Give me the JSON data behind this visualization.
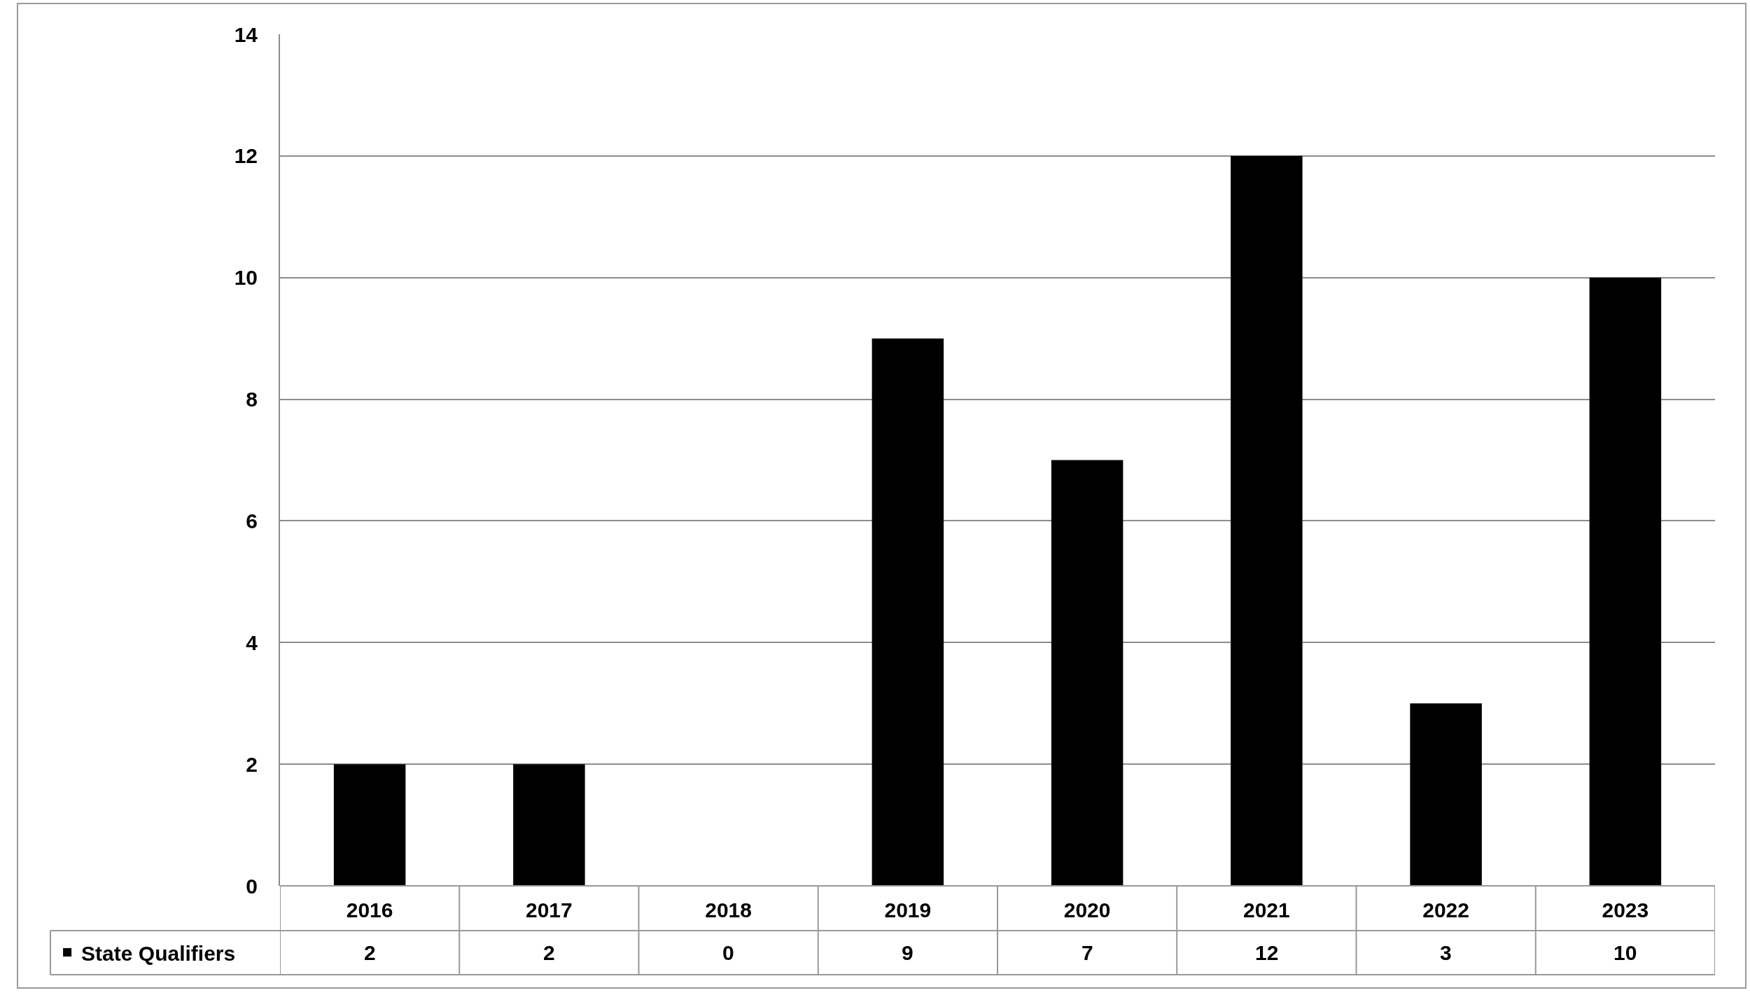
{
  "chart_data": {
    "type": "bar",
    "categories": [
      "2016",
      "2017",
      "2018",
      "2019",
      "2020",
      "2021",
      "2022",
      "2023"
    ],
    "series": [
      {
        "name": "State Qualifiers",
        "color": "#000000",
        "values": [
          2,
          2,
          0,
          9,
          7,
          12,
          3,
          10
        ]
      }
    ],
    "ylim": [
      0,
      14
    ],
    "yticks": [
      0,
      2,
      4,
      6,
      8,
      10,
      12,
      14
    ],
    "grid": "y",
    "legend": "bottom left",
    "data_labels": true
  }
}
